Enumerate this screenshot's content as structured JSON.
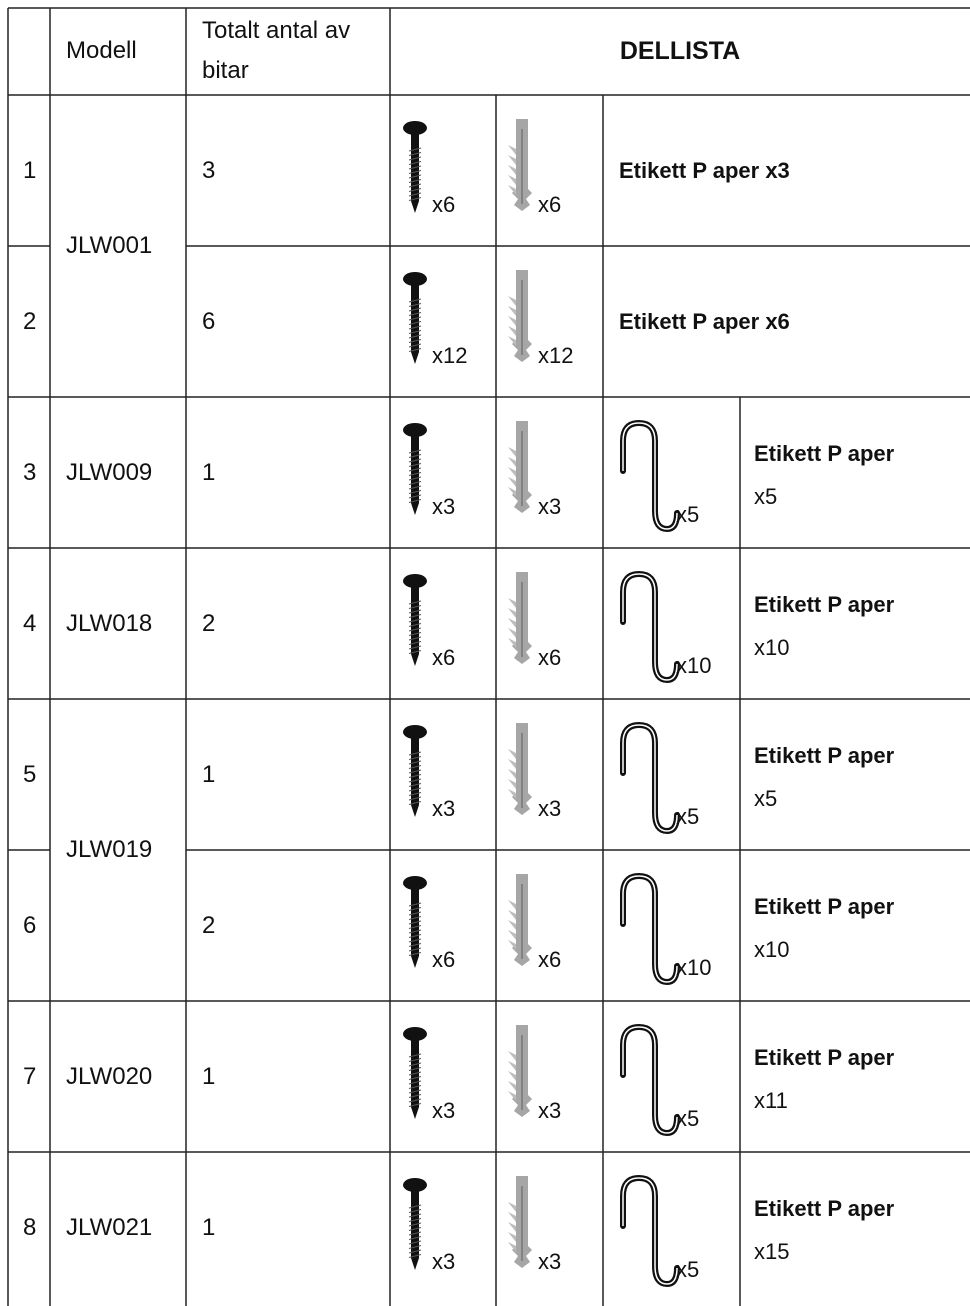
{
  "header": {
    "model": "Modell",
    "total": "Totalt antal av bitar",
    "parts": "DELLISTA"
  },
  "rows": [
    {
      "index": "1",
      "model": "JLW001",
      "total": "3",
      "screws": "x6",
      "anchors": "x6",
      "label": "Etikett P aper x3"
    },
    {
      "index": "2",
      "total": "6",
      "screws": "x12",
      "anchors": "x12",
      "label": "Etikett P aper x6"
    },
    {
      "index": "3",
      "model": "JLW009",
      "total": "1",
      "screws": "x3",
      "anchors": "x3",
      "hooks": "x5",
      "label": "Etikett P aper",
      "label_qty": "x5"
    },
    {
      "index": "4",
      "model": "JLW018",
      "total": "2",
      "screws": "x6",
      "anchors": "x6",
      "hooks": "x10",
      "label": "Etikett P aper",
      "label_qty": "x10"
    },
    {
      "index": "5",
      "model": "JLW019",
      "total": "1",
      "screws": "x3",
      "anchors": "x3",
      "hooks": "x5",
      "label": "Etikett P aper",
      "label_qty": "x5"
    },
    {
      "index": "6",
      "total": "2",
      "screws": "x6",
      "anchors": "x6",
      "hooks": "x10",
      "label": "Etikett P aper",
      "label_qty": "x10"
    },
    {
      "index": "7",
      "model": "JLW020",
      "total": "1",
      "screws": "x3",
      "anchors": "x3",
      "hooks": "x5",
      "label": "Etikett P aper",
      "label_qty": "x11"
    },
    {
      "index": "8",
      "model": "JLW021",
      "total": "1",
      "screws": "x3",
      "anchors": "x3",
      "hooks": "x5",
      "label": "Etikett P aper",
      "label_qty": "x15"
    }
  ]
}
